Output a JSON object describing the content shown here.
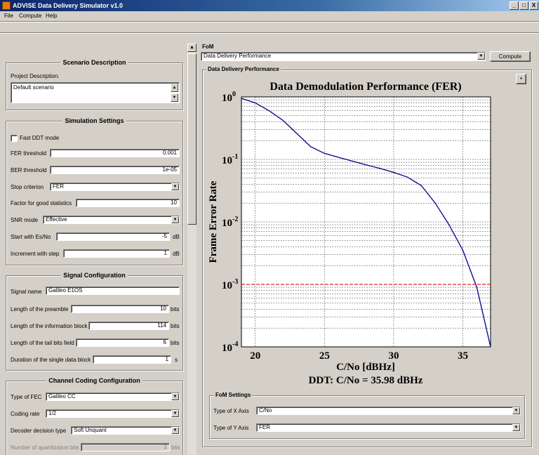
{
  "window": {
    "title": "ADVISE Data Delivery Simulator v1.0",
    "minimize": "_",
    "maximize": "□",
    "close": "X"
  },
  "menu": {
    "file": "File",
    "compute": "Compute",
    "help": "Help"
  },
  "scenario": {
    "title": "Scenario Description",
    "project_label": "Project Description:",
    "project_value": "Default scenario"
  },
  "simulation": {
    "title": "Simulation Settings",
    "fast_ddt_label": "Fast DDT mode",
    "fer_threshold_label": "FER threshold",
    "fer_threshold_value": "0.001",
    "ber_threshold_label": "BER threshold",
    "ber_threshold_value": "1e-05",
    "stop_label": "Stop criterion",
    "stop_value": "FER",
    "factor_label": "Factor for good statistics",
    "factor_value": "10",
    "snr_label": "SNR mode",
    "snr_value": "Effective",
    "start_label": "Start with Es/No",
    "start_value": "-5",
    "start_unit": "dB",
    "increment_label": "Increment with step",
    "increment_value": "1",
    "increment_unit": "dB"
  },
  "signal": {
    "title": "Signal Configuration",
    "name_label": "Signal name",
    "name_value": "Galileo E1OS",
    "preamble_label": "Length of the preamble",
    "preamble_value": "10",
    "preamble_unit": "bits",
    "info_label": "Length of the information block",
    "info_value": "114",
    "info_unit": "bits",
    "tail_label": "Length of the tail bits field",
    "tail_value": "6",
    "tail_unit": "bits",
    "duration_label": "Duration of the single data block",
    "duration_value": "1",
    "duration_unit": "s"
  },
  "coding": {
    "title": "Channel Coding Configuration",
    "fec_label": "Type of FEC",
    "fec_value": "Galileo CC",
    "rate_label": "Coding rate",
    "rate_value": "1/2",
    "decoder_label": "Decoder decision type",
    "decoder_value": "Soft Unquant",
    "quant_label": "Number of quantization bits",
    "quant_value": "1",
    "quant_unit": "bits"
  },
  "fom": {
    "label": "FoM",
    "select_value": "Data Delivery Performance",
    "compute_button": "Compute",
    "panel_title": "Data Delivery Performance"
  },
  "fom_settings": {
    "title": "FoM Settings",
    "x_label": "Type of X Axis",
    "x_value": "C/No",
    "y_label": "Type of  Y Axis",
    "y_value": "FER"
  },
  "chart_data": {
    "type": "line",
    "title": "Data Demodulation Performance (FER)",
    "xlabel": "C/No [dBHz]",
    "ylabel": "Frame Error Rate",
    "subtitle": "DDT: C/No = 35.98 dBHz",
    "xlim": [
      19,
      37
    ],
    "ylim": [
      0.0001,
      1
    ],
    "yscale": "log",
    "grid": true,
    "x_ticks": [
      "20",
      "25",
      "30",
      "35"
    ],
    "y_ticks": [
      {
        "base": "10",
        "exp": "0"
      },
      {
        "base": "10",
        "exp": "-1"
      },
      {
        "base": "10",
        "exp": "-2"
      },
      {
        "base": "10",
        "exp": "-3"
      },
      {
        "base": "10",
        "exp": "-4"
      }
    ],
    "series": [
      {
        "color": "#00008b",
        "x": [
          19,
          20,
          21,
          22,
          23,
          24,
          25,
          26,
          27,
          28,
          29,
          30,
          31,
          32,
          33,
          34,
          35,
          36,
          37
        ],
        "y": [
          0.95,
          0.8,
          0.6,
          0.42,
          0.26,
          0.16,
          0.125,
          0.108,
          0.094,
          0.082,
          0.072,
          0.062,
          0.052,
          0.038,
          0.02,
          0.009,
          0.0035,
          0.0009,
          0.0001
        ]
      },
      {
        "color": "#e02020",
        "dashed": true,
        "x": [
          19,
          37
        ],
        "y": [
          0.001,
          0.001
        ]
      }
    ]
  }
}
